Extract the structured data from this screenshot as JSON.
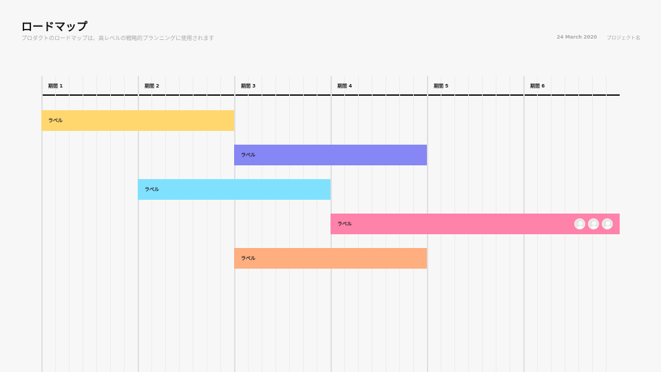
{
  "header": {
    "title": "ロードマップ",
    "subtitle": "プロダクトのロードマップは、高レベルの戦略的プランニングに使用されます",
    "date": "24 March 2020",
    "project": "プロジェクト名"
  },
  "periods": [
    "期間 1",
    "期間 2",
    "期間 3",
    "期間 4",
    "期間 5",
    "期間 6"
  ],
  "tasks": [
    {
      "label": "ラベル",
      "start_period": 1,
      "end_period": 2,
      "color": "#ffd76e",
      "avatars": 0
    },
    {
      "label": "ラベル",
      "start_period": 3,
      "end_period": 4,
      "color": "#8686f5",
      "avatars": 0
    },
    {
      "label": "ラベル",
      "start_period": 2,
      "end_period": 3,
      "color": "#80e1ff",
      "avatars": 0
    },
    {
      "label": "ラベル",
      "start_period": 4,
      "end_period": 6,
      "color": "#ff82ab",
      "avatars": 3
    },
    {
      "label": "ラベル",
      "start_period": 3,
      "end_period": 4,
      "color": "#ffae80",
      "avatars": 0
    }
  ]
}
